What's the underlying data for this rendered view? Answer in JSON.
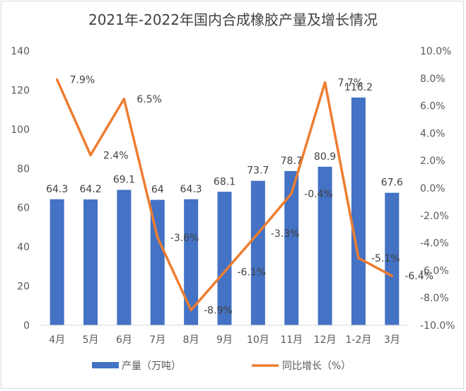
{
  "chart_data": {
    "type": "bar",
    "title": "2021年-2022年国内合成橡胶产量及增长情况",
    "categories": [
      "4月",
      "5月",
      "6月",
      "7月",
      "8月",
      "9月",
      "10月",
      "11月",
      "12月",
      "1-2月",
      "3月"
    ],
    "series": [
      {
        "name": "产量（万吨）",
        "type": "bar",
        "axis": "left",
        "color": "#4472c4",
        "values": [
          64.3,
          64.2,
          69.1,
          64,
          64.3,
          68.1,
          73.7,
          78.7,
          80.9,
          116.2,
          67.6
        ],
        "labels": [
          "64.3",
          "64.2",
          "69.1",
          "64",
          "64.3",
          "68.1",
          "73.7",
          "78.7",
          "80.9",
          "116.2",
          "67.6"
        ]
      },
      {
        "name": "同比增长（%）",
        "type": "line",
        "axis": "right",
        "color": "#ed7d31",
        "values": [
          7.9,
          2.4,
          6.5,
          -3.6,
          -8.9,
          -6.1,
          -3.3,
          -0.4,
          7.7,
          -5.1,
          -6.4
        ],
        "labels": [
          "7.9%",
          "2.4%",
          "6.5%",
          "-3.6%",
          "-8.9%",
          "-6.1%",
          "-3.3%",
          "-0.4%",
          "7.7%",
          "-5.1%",
          "-6.4%"
        ]
      }
    ],
    "left_axis": {
      "ylim": [
        0,
        140
      ],
      "ticks": [
        "0",
        "20",
        "40",
        "60",
        "80",
        "100",
        "120",
        "140"
      ]
    },
    "right_axis": {
      "ylim": [
        -10,
        10
      ],
      "ticks": [
        "-10.0%",
        "-8.0%",
        "-6.0%",
        "-4.0%",
        "-2.0%",
        "0.0%",
        "2.0%",
        "4.0%",
        "6.0%",
        "8.0%",
        "10.0%"
      ]
    },
    "grid": false,
    "legend_position": "bottom"
  }
}
